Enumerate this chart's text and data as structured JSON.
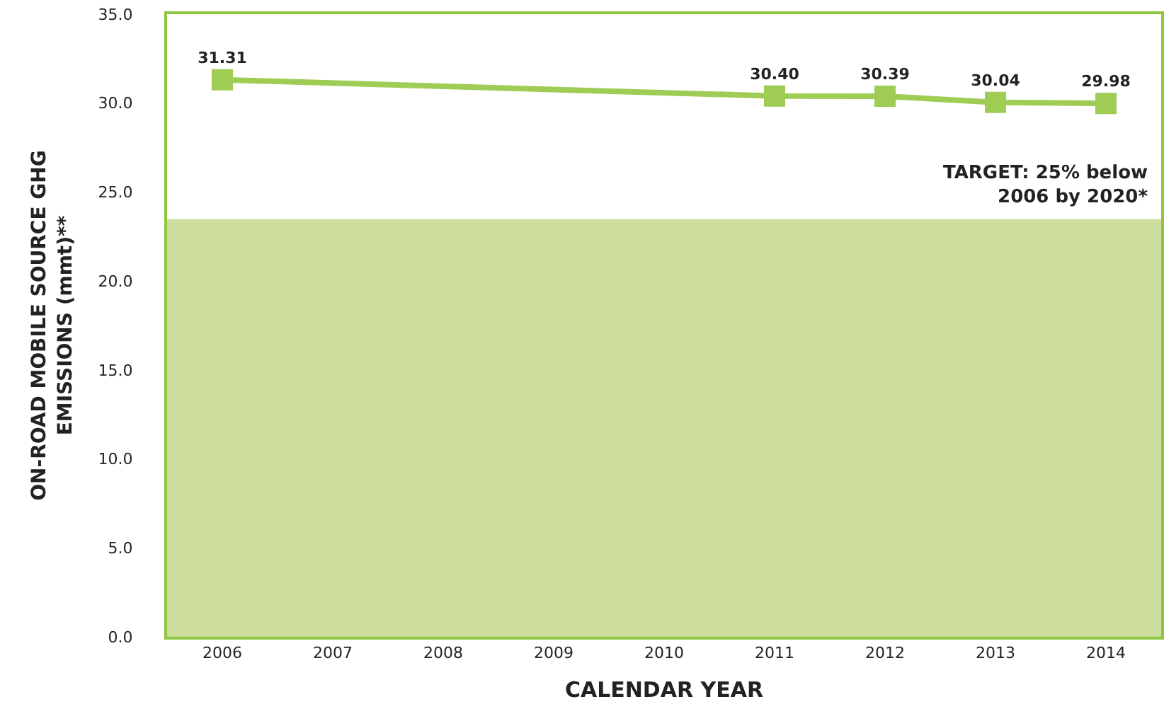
{
  "chart_data": {
    "type": "line",
    "xlabel": "CALENDAR YEAR",
    "ylabel": "ON-ROAD MOBILE SOURCE GHG\nEMISSIONS (mmt)**",
    "x": [
      2006,
      2011,
      2012,
      2013,
      2014
    ],
    "series": [
      {
        "color": "#9fcc55",
        "values": [
          31.31,
          30.4,
          30.39,
          30.04,
          29.98
        ],
        "value_labels": [
          "31.31",
          "30.40",
          "30.39",
          "30.04",
          "29.98"
        ]
      }
    ],
    "xlim": [
      2005.5,
      2014.5
    ],
    "xticks": [
      2006,
      2007,
      2008,
      2009,
      2010,
      2011,
      2012,
      2013,
      2014
    ],
    "ylim": [
      0,
      35
    ],
    "yticks": [
      {
        "value": 0,
        "label": "0.0"
      },
      {
        "value": 5,
        "label": "5.0"
      },
      {
        "value": 10,
        "label": "10.0"
      },
      {
        "value": 15,
        "label": "15.0"
      },
      {
        "value": 20,
        "label": "20.0"
      },
      {
        "value": 25,
        "label": "25.0"
      },
      {
        "value": 30,
        "label": "30.0"
      },
      {
        "value": 35,
        "label": "35.0"
      }
    ],
    "bands": [
      {
        "axis": "y",
        "from": 0,
        "to": 23.48,
        "label": "TARGET: 25% below\n2006 by 2020*",
        "color": "#cddd9e"
      }
    ],
    "marker": "square",
    "grid": false,
    "legend": false
  }
}
